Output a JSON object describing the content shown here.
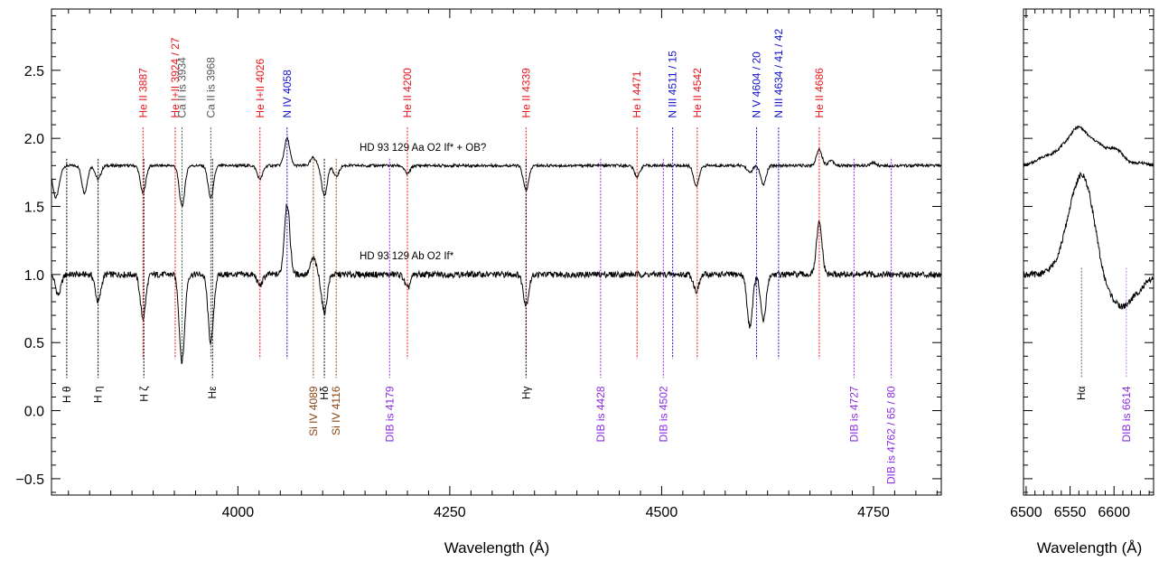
{
  "chart_data": [
    {
      "type": "line",
      "title": "",
      "xlabel": "Wavelength (Å)",
      "ylabel": "",
      "xlim": [
        3780,
        4830
      ],
      "ylim": [
        -0.62,
        2.95
      ],
      "xticks": [
        4000,
        4250,
        4500,
        4750
      ],
      "yticks": [
        -0.5,
        0.0,
        0.5,
        1.0,
        1.5,
        2.0,
        2.5
      ],
      "ytick_labels": [
        "−0.5",
        "0.0",
        "0.5",
        "1.0",
        "1.5",
        "2.0",
        "2.5"
      ],
      "grid": false,
      "colors": {
        "he": "#e8141b",
        "n": "#1111cc",
        "ca": "#555555",
        "dib": "#8a2be2",
        "si": "#8b4513",
        "h": "#000000"
      },
      "series": [
        {
          "name": "HD 93 129 Aa   O2 If* + OB?",
          "baseline": 1.8,
          "x": [
            3784,
            3788,
            3819,
            3835,
            3888,
            3934,
            3968,
            4026,
            4058,
            4089,
            4102,
            4116,
            4200,
            4340,
            4471,
            4541,
            4604,
            4620,
            4686,
            4700,
            4750,
            4830
          ],
          "y": [
            1.62,
            1.7,
            1.6,
            1.7,
            1.6,
            1.5,
            1.56,
            1.7,
            2.0,
            1.86,
            1.58,
            1.72,
            1.74,
            1.62,
            1.72,
            1.65,
            1.75,
            1.66,
            1.92,
            1.84,
            1.82,
            1.8
          ]
        },
        {
          "name": "HD 93 129 Ab   O2 If*",
          "baseline": 1.0,
          "x": [
            3788,
            3835,
            3888,
            3934,
            3968,
            4026,
            4058,
            4089,
            4102,
            4200,
            4340,
            4541,
            4604,
            4620,
            4686,
            4830
          ],
          "y": [
            0.85,
            0.8,
            0.68,
            0.36,
            0.5,
            0.92,
            1.52,
            1.12,
            0.72,
            0.9,
            0.78,
            0.88,
            0.62,
            0.66,
            1.38,
            1.0
          ]
        }
      ],
      "lines_top": [
        {
          "label": "He II 3887",
          "x": 3888,
          "group": "he"
        },
        {
          "label": "He I+II 3924 / 27",
          "x": 3926,
          "group": "he"
        },
        {
          "label": "Ca II is 3934",
          "x": 3934,
          "group": "ca"
        },
        {
          "label": "Ca II is 3968",
          "x": 3968,
          "group": "ca"
        },
        {
          "label": "He I+II 4026",
          "x": 4026,
          "group": "he"
        },
        {
          "label": "N IV 4058",
          "x": 4058,
          "group": "n"
        },
        {
          "label": "He II 4200",
          "x": 4200,
          "group": "he"
        },
        {
          "label": "He II 4339",
          "x": 4340,
          "group": "he"
        },
        {
          "label": "He I 4471",
          "x": 4471,
          "group": "he"
        },
        {
          "label": "N III 4511 / 15",
          "x": 4513,
          "group": "n"
        },
        {
          "label": "He II 4542",
          "x": 4542,
          "group": "he"
        },
        {
          "label": "N V 4604 / 20",
          "x": 4612,
          "group": "n"
        },
        {
          "label": "N III 4634 / 41 / 42",
          "x": 4638,
          "group": "n"
        },
        {
          "label": "He II 4686",
          "x": 4686,
          "group": "he"
        }
      ],
      "lines_bottom": [
        {
          "label": "H θ",
          "x": 3798,
          "group": "h"
        },
        {
          "label": "H η",
          "x": 3835,
          "group": "h"
        },
        {
          "label": "H ζ",
          "x": 3889,
          "group": "h"
        },
        {
          "label": "Hε",
          "x": 3970,
          "group": "h"
        },
        {
          "label": "Si IV 4089",
          "x": 4089,
          "group": "si"
        },
        {
          "label": "Hδ",
          "x": 4102,
          "group": "h"
        },
        {
          "label": "Si IV 4116",
          "x": 4116,
          "group": "si"
        },
        {
          "label": "DIB is 4179",
          "x": 4179,
          "group": "dib"
        },
        {
          "label": "Hγ",
          "x": 4340,
          "group": "h"
        },
        {
          "label": "DIB is 4428",
          "x": 4428,
          "group": "dib"
        },
        {
          "label": "DIB is 4502",
          "x": 4502,
          "group": "dib"
        },
        {
          "label": "DIB is 4727",
          "x": 4727,
          "group": "dib"
        },
        {
          "label": "DIB is 4762 / 65 / 80",
          "x": 4771,
          "group": "dib"
        }
      ]
    },
    {
      "type": "line",
      "title": "",
      "xlabel": "Wavelength (Å)",
      "ylabel": "",
      "xlim": [
        6497,
        6645
      ],
      "ylim": [
        -0.62,
        2.95
      ],
      "xticks": [
        6500,
        6550,
        6600
      ],
      "grid": false,
      "series": [
        {
          "name": "HD 93 129 Aa",
          "x": [
            6497,
            6520,
            6540,
            6555,
            6563,
            6580,
            6600,
            6610,
            6615,
            6630,
            6645
          ],
          "y": [
            1.8,
            1.86,
            1.9,
            1.93,
            1.96,
            1.94,
            1.9,
            1.84,
            1.78,
            1.82,
            1.8
          ]
        },
        {
          "name": "HD 93 129 Ab",
          "x": [
            6497,
            6515,
            6535,
            6550,
            6563,
            6575,
            6590,
            6605,
            6615,
            6630,
            6645
          ],
          "y": [
            1.0,
            1.0,
            1.05,
            1.3,
            1.5,
            1.3,
            0.92,
            0.86,
            0.88,
            0.92,
            1.0
          ]
        }
      ],
      "lines_bottom": [
        {
          "label": "Hα",
          "x": 6563,
          "group": "h"
        },
        {
          "label": "DIB is 6614",
          "x": 6614,
          "group": "dib"
        }
      ]
    }
  ]
}
